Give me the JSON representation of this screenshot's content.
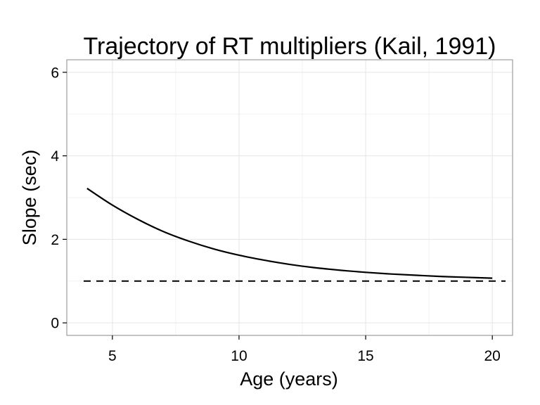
{
  "chart_data": {
    "type": "line",
    "title": "Trajectory of RT multipliers (Kail, 1991)",
    "xlabel": "Age (years)",
    "ylabel": "Slope (sec)",
    "xlim": [
      3.2,
      20.8
    ],
    "ylim": [
      -0.3,
      6.3
    ],
    "x_ticks": [
      5,
      10,
      15,
      20
    ],
    "y_ticks": [
      0,
      2,
      4,
      6
    ],
    "x_tick_labels": [
      "5",
      "10",
      "15",
      "20"
    ],
    "y_tick_labels": [
      "0",
      "2",
      "4",
      "6"
    ],
    "grid": true,
    "legend": "none",
    "series": [
      {
        "style": "solid",
        "x": [
          4,
          5,
          6,
          7,
          8,
          9,
          10,
          11,
          12,
          13,
          14,
          15,
          16,
          17,
          18,
          19,
          20
        ],
        "values": [
          3.22,
          2.82,
          2.48,
          2.19,
          1.96,
          1.77,
          1.62,
          1.5,
          1.4,
          1.32,
          1.26,
          1.21,
          1.17,
          1.14,
          1.11,
          1.09,
          1.07
        ]
      }
    ],
    "reference_lines": [
      {
        "orientation": "horizontal",
        "y": 1,
        "style": "dashed"
      }
    ]
  }
}
